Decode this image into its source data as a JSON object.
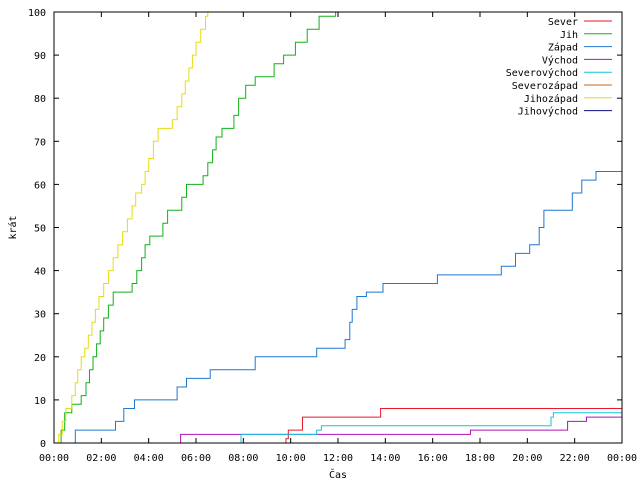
{
  "chart_data": {
    "type": "line",
    "title": "",
    "xlabel": "Čas",
    "ylabel": "krát",
    "xlim": [
      0,
      24
    ],
    "ylim": [
      0,
      100
    ],
    "grid": false,
    "legend_position": "top-right",
    "x_ticks": [
      {
        "value": 0,
        "label": "00:00"
      },
      {
        "value": 2,
        "label": "02:00"
      },
      {
        "value": 4,
        "label": "04:00"
      },
      {
        "value": 6,
        "label": "06:00"
      },
      {
        "value": 8,
        "label": "08:00"
      },
      {
        "value": 10,
        "label": "10:00"
      },
      {
        "value": 12,
        "label": "12:00"
      },
      {
        "value": 14,
        "label": "14:00"
      },
      {
        "value": 16,
        "label": "16:00"
      },
      {
        "value": 18,
        "label": "18:00"
      },
      {
        "value": 20,
        "label": "20:00"
      },
      {
        "value": 22,
        "label": "22:00"
      },
      {
        "value": 24,
        "label": "00:00"
      }
    ],
    "y_ticks": [
      {
        "value": 0,
        "label": "0"
      },
      {
        "value": 10,
        "label": "10"
      },
      {
        "value": 20,
        "label": "20"
      },
      {
        "value": 30,
        "label": "30"
      },
      {
        "value": 40,
        "label": "40"
      },
      {
        "value": 50,
        "label": "50"
      },
      {
        "value": 60,
        "label": "60"
      },
      {
        "value": 70,
        "label": "70"
      },
      {
        "value": 80,
        "label": "80"
      },
      {
        "value": 90,
        "label": "90"
      },
      {
        "value": 100,
        "label": "100"
      }
    ],
    "series": [
      {
        "name": "Sever",
        "color": "#e8192c",
        "step": true,
        "points": [
          [
            9.8,
            0
          ],
          [
            9.8,
            1
          ],
          [
            9.9,
            3
          ],
          [
            10.5,
            6
          ],
          [
            13.8,
            8
          ],
          [
            24,
            8
          ]
        ]
      },
      {
        "name": "Jih",
        "color": "#11b11a",
        "step": true,
        "points": [
          [
            0.15,
            0
          ],
          [
            0.3,
            3
          ],
          [
            0.45,
            7
          ],
          [
            0.75,
            9
          ],
          [
            1.15,
            11
          ],
          [
            1.35,
            14
          ],
          [
            1.5,
            17
          ],
          [
            1.65,
            20
          ],
          [
            1.8,
            23
          ],
          [
            1.95,
            26
          ],
          [
            2.1,
            29
          ],
          [
            2.3,
            32
          ],
          [
            2.5,
            35
          ],
          [
            3.3,
            37
          ],
          [
            3.5,
            40
          ],
          [
            3.7,
            43
          ],
          [
            3.85,
            46
          ],
          [
            4.05,
            48
          ],
          [
            4.6,
            51
          ],
          [
            4.8,
            54
          ],
          [
            5.4,
            57
          ],
          [
            5.6,
            60
          ],
          [
            6.3,
            62
          ],
          [
            6.5,
            65
          ],
          [
            6.7,
            68
          ],
          [
            6.85,
            71
          ],
          [
            7.1,
            73
          ],
          [
            7.6,
            76
          ],
          [
            7.8,
            80
          ],
          [
            8.1,
            83
          ],
          [
            8.5,
            85
          ],
          [
            9.3,
            88
          ],
          [
            9.7,
            90
          ],
          [
            10.2,
            93
          ],
          [
            10.7,
            96
          ],
          [
            11.2,
            99
          ],
          [
            11.9,
            100
          ]
        ]
      },
      {
        "name": "Západ",
        "color": "#1f77d0",
        "step": true,
        "points": [
          [
            0.9,
            0
          ],
          [
            0.9,
            3
          ],
          [
            2.6,
            5
          ],
          [
            2.95,
            8
          ],
          [
            3.4,
            10
          ],
          [
            5.2,
            13
          ],
          [
            5.6,
            15
          ],
          [
            6.6,
            17
          ],
          [
            8.5,
            20
          ],
          [
            11.1,
            22
          ],
          [
            12.3,
            24
          ],
          [
            12.5,
            28
          ],
          [
            12.6,
            31
          ],
          [
            12.8,
            34
          ],
          [
            13.2,
            35
          ],
          [
            13.9,
            37
          ],
          [
            16.2,
            39
          ],
          [
            18.9,
            41
          ],
          [
            19.5,
            44
          ],
          [
            20.1,
            46
          ],
          [
            20.5,
            50
          ],
          [
            20.7,
            54
          ],
          [
            21.9,
            58
          ],
          [
            22.3,
            61
          ],
          [
            22.9,
            63
          ],
          [
            24,
            63
          ]
        ]
      },
      {
        "name": "Východ",
        "color": "#b112b4",
        "step": true,
        "points": [
          [
            5.35,
            0
          ],
          [
            5.35,
            2
          ],
          [
            17.6,
            3
          ],
          [
            21.7,
            5
          ],
          [
            22.5,
            6
          ],
          [
            24,
            6
          ]
        ]
      },
      {
        "name": "Severovýchod",
        "color": "#19c2d6",
        "step": true,
        "points": [
          [
            7.9,
            0
          ],
          [
            7.9,
            2
          ],
          [
            11.1,
            3
          ],
          [
            11.3,
            4
          ],
          [
            21.0,
            6
          ],
          [
            21.1,
            7
          ],
          [
            24,
            7
          ]
        ]
      },
      {
        "name": "Severozápad",
        "color": "#c46b1c",
        "step": true,
        "points": []
      },
      {
        "name": "Jihozápad",
        "color": "#e6dc12",
        "step": true,
        "points": [
          [
            0.1,
            0
          ],
          [
            0.2,
            2
          ],
          [
            0.35,
            5
          ],
          [
            0.5,
            8
          ],
          [
            0.75,
            11
          ],
          [
            0.9,
            14
          ],
          [
            1.0,
            17
          ],
          [
            1.15,
            20
          ],
          [
            1.3,
            22
          ],
          [
            1.45,
            25
          ],
          [
            1.6,
            28
          ],
          [
            1.75,
            31
          ],
          [
            1.9,
            34
          ],
          [
            2.1,
            37
          ],
          [
            2.3,
            40
          ],
          [
            2.5,
            43
          ],
          [
            2.7,
            46
          ],
          [
            2.9,
            49
          ],
          [
            3.1,
            52
          ],
          [
            3.3,
            55
          ],
          [
            3.45,
            58
          ],
          [
            3.7,
            60
          ],
          [
            3.85,
            63
          ],
          [
            4.0,
            66
          ],
          [
            4.2,
            70
          ],
          [
            4.4,
            73
          ],
          [
            5.0,
            75
          ],
          [
            5.2,
            78
          ],
          [
            5.4,
            81
          ],
          [
            5.55,
            84
          ],
          [
            5.7,
            87
          ],
          [
            5.85,
            90
          ],
          [
            6.0,
            93
          ],
          [
            6.2,
            96
          ],
          [
            6.4,
            99
          ],
          [
            6.5,
            100
          ]
        ]
      },
      {
        "name": "Jihovýchod",
        "color": "#0b0c7c",
        "step": true,
        "points": []
      }
    ]
  }
}
